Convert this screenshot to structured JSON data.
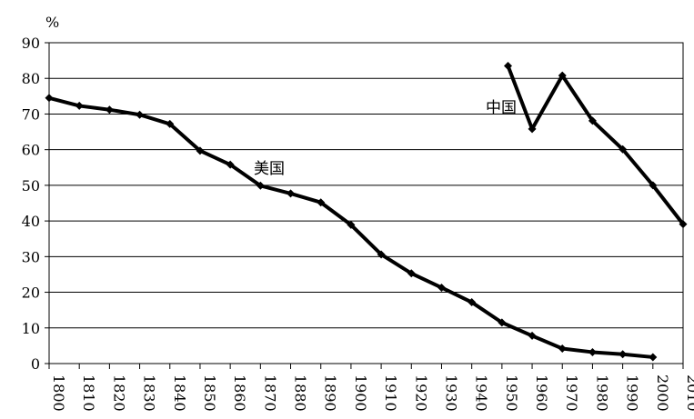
{
  "chart_data": {
    "type": "line",
    "title": "",
    "xlabel": "",
    "ylabel": "",
    "y_unit": "%",
    "xlim": [
      1800,
      2010
    ],
    "ylim": [
      0,
      90
    ],
    "x_ticks": [
      1800,
      1810,
      1820,
      1830,
      1840,
      1850,
      1860,
      1870,
      1880,
      1890,
      1900,
      1910,
      1920,
      1930,
      1940,
      1950,
      1960,
      1970,
      1980,
      1990,
      2000,
      2010
    ],
    "y_ticks": [
      0,
      10,
      20,
      30,
      40,
      50,
      60,
      70,
      80,
      90
    ],
    "grid": "horizontal",
    "legend": "none",
    "series": [
      {
        "name": "美国",
        "color": "#000000",
        "x": [
          1800,
          1810,
          1820,
          1830,
          1840,
          1850,
          1860,
          1870,
          1880,
          1890,
          1900,
          1910,
          1920,
          1930,
          1940,
          1950,
          1960,
          1970,
          1980,
          1990,
          2000
        ],
        "y": [
          74.5,
          72.3,
          71.2,
          69.8,
          67.2,
          59.7,
          55.8,
          49.9,
          47.7,
          45.2,
          38.9,
          30.6,
          25.3,
          21.3,
          17.2,
          11.5,
          7.8,
          4.2,
          3.2,
          2.6,
          1.8
        ]
      },
      {
        "name": "中国",
        "color": "#000000",
        "x": [
          1952,
          1960,
          1970,
          1980,
          1990,
          2000,
          2010
        ],
        "y": [
          83.5,
          65.8,
          80.8,
          68.1,
          60.1,
          50.0,
          39.1
        ]
      }
    ]
  }
}
